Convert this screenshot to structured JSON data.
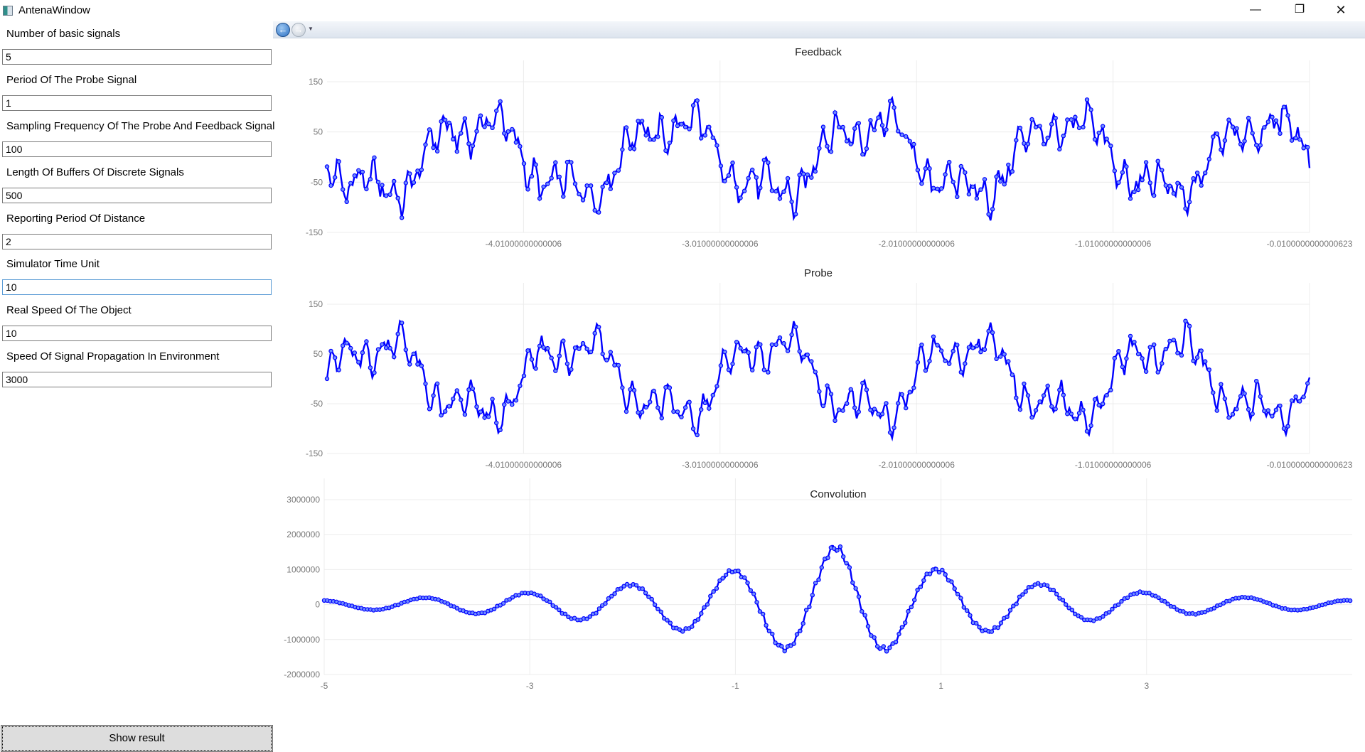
{
  "window": {
    "title": "AntenaWindow",
    "minimize_glyph": "—",
    "maximize_glyph": "❐",
    "close_glyph": "✕"
  },
  "nav": {
    "back_icon": "arrow-left-icon",
    "forward_icon": "arrow-right-icon",
    "dropdown_icon": "caret-down-icon"
  },
  "form": {
    "fields": [
      {
        "label": "Number of basic signals",
        "value": "5"
      },
      {
        "label": "Period Of The Probe Signal",
        "value": "1"
      },
      {
        "label": "Sampling Frequency Of The Probe And Feedback Signal",
        "value": "100"
      },
      {
        "label": "Length Of Buffers Of Discrete Signals",
        "value": "500"
      },
      {
        "label": "Reporting Period Of Distance",
        "value": "2"
      },
      {
        "label": "Simulator Time Unit",
        "value": "10"
      },
      {
        "label": "Real Speed Of The Object",
        "value": "10"
      },
      {
        "label": "Speed Of Signal Propagation In Environment",
        "value": "3000"
      }
    ],
    "show_result_label": "Show result"
  },
  "series_color": "#0000ff",
  "chart_data": [
    {
      "type": "line",
      "title": "Feedback",
      "xlim": [
        -5.01,
        -0.0100000000000623
      ],
      "ylim": [
        -150,
        150
      ],
      "y_ticks": [
        "150",
        "50",
        "-50",
        "-150"
      ],
      "x_ticks": [
        "-4.01000000000006",
        "-3.01000000000006",
        "-2.01000000000006",
        "-1.01000000000006",
        "-0.0100000000000623"
      ],
      "grid": true,
      "shape": {
        "count": 500,
        "phase": 0.5,
        "offset": 0,
        "noise": 0.3
      }
    },
    {
      "type": "line",
      "title": "Probe",
      "xlim": [
        -5.01,
        -0.0100000000000623
      ],
      "ylim": [
        -150,
        150
      ],
      "y_ticks": [
        "150",
        "50",
        "-50",
        "-150"
      ],
      "x_ticks": [
        "-4.01000000000006",
        "-3.01000000000006",
        "-2.01000000000006",
        "-1.01000000000006",
        "-0.0100000000000623"
      ],
      "grid": true,
      "shape": {
        "count": 500,
        "phase": 0.0,
        "offset": 0,
        "noise": 0.2
      }
    },
    {
      "type": "line",
      "title": "Convolution",
      "xlim": [
        -5,
        5
      ],
      "ylim": [
        -2000000,
        3000000
      ],
      "y_ticks": [
        "3000000",
        "2000000",
        "1000000",
        "0",
        "-1000000",
        "-2000000"
      ],
      "x_ticks": [
        "-5",
        "-3",
        "-1",
        "1",
        "3"
      ],
      "grid": true,
      "shape": {
        "count": 999,
        "peak": 1650000,
        "period": 1.0,
        "center": 0.0
      }
    }
  ]
}
